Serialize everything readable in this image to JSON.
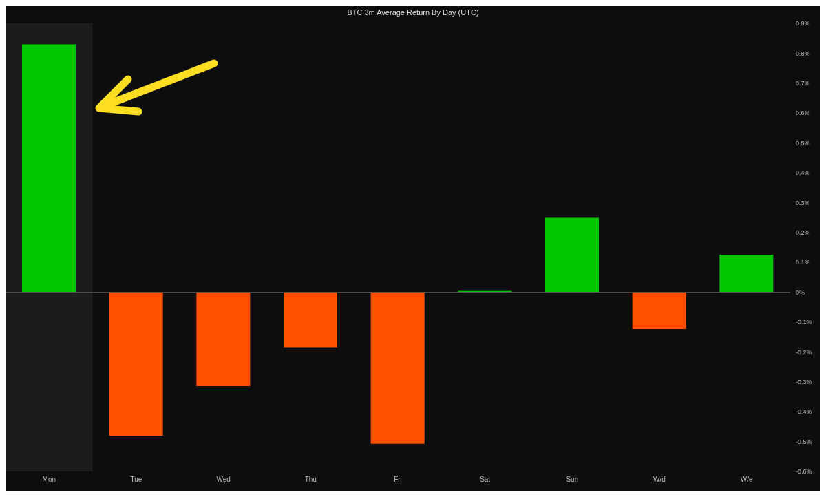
{
  "chart_data": {
    "type": "bar",
    "title": "BTC 3m Average Return By Day (UTC)",
    "categories": [
      "Mon",
      "Tue",
      "Wed",
      "Thu",
      "Fri",
      "Sat",
      "Sun",
      "W/d",
      "W/e"
    ],
    "values": [
      0.83,
      -0.48,
      -0.314,
      -0.184,
      -0.507,
      0.004,
      0.249,
      -0.123,
      0.126
    ],
    "colors": [
      "#00c800",
      "#ff5000",
      "#ff5000",
      "#ff5000",
      "#ff5000",
      "#00c800",
      "#00c800",
      "#ff5000",
      "#00c800"
    ],
    "ylim": [
      -0.6,
      0.9
    ],
    "yticks": [
      {
        "value": -0.6,
        "label": "-0.6%"
      },
      {
        "value": -0.5,
        "label": "-0.5%"
      },
      {
        "value": -0.4,
        "label": "-0.4%"
      },
      {
        "value": -0.3,
        "label": "-0.3%"
      },
      {
        "value": -0.2,
        "label": "-0.2%"
      },
      {
        "value": -0.1,
        "label": "-0.1%"
      },
      {
        "value": 0,
        "label": "0%"
      },
      {
        "value": 0.1,
        "label": "0.1%"
      },
      {
        "value": 0.2,
        "label": "0.2%"
      },
      {
        "value": 0.3,
        "label": "0.3%"
      },
      {
        "value": 0.4,
        "label": "0.4%"
      },
      {
        "value": 0.5,
        "label": "0.5%"
      },
      {
        "value": 0.6,
        "label": "0.6%"
      },
      {
        "value": 0.7,
        "label": "0.7%"
      },
      {
        "value": 0.8,
        "label": "0.8%"
      },
      {
        "value": 0.9,
        "label": "0.9%"
      }
    ],
    "ref_lines": [
      {
        "axis": "y",
        "value": 0,
        "color": "#555555"
      }
    ],
    "bands": [
      {
        "axis": "x",
        "from": "Mon",
        "to": "Mon",
        "color": "#1c1c1c"
      }
    ],
    "grid": false,
    "legend": false
  }
}
